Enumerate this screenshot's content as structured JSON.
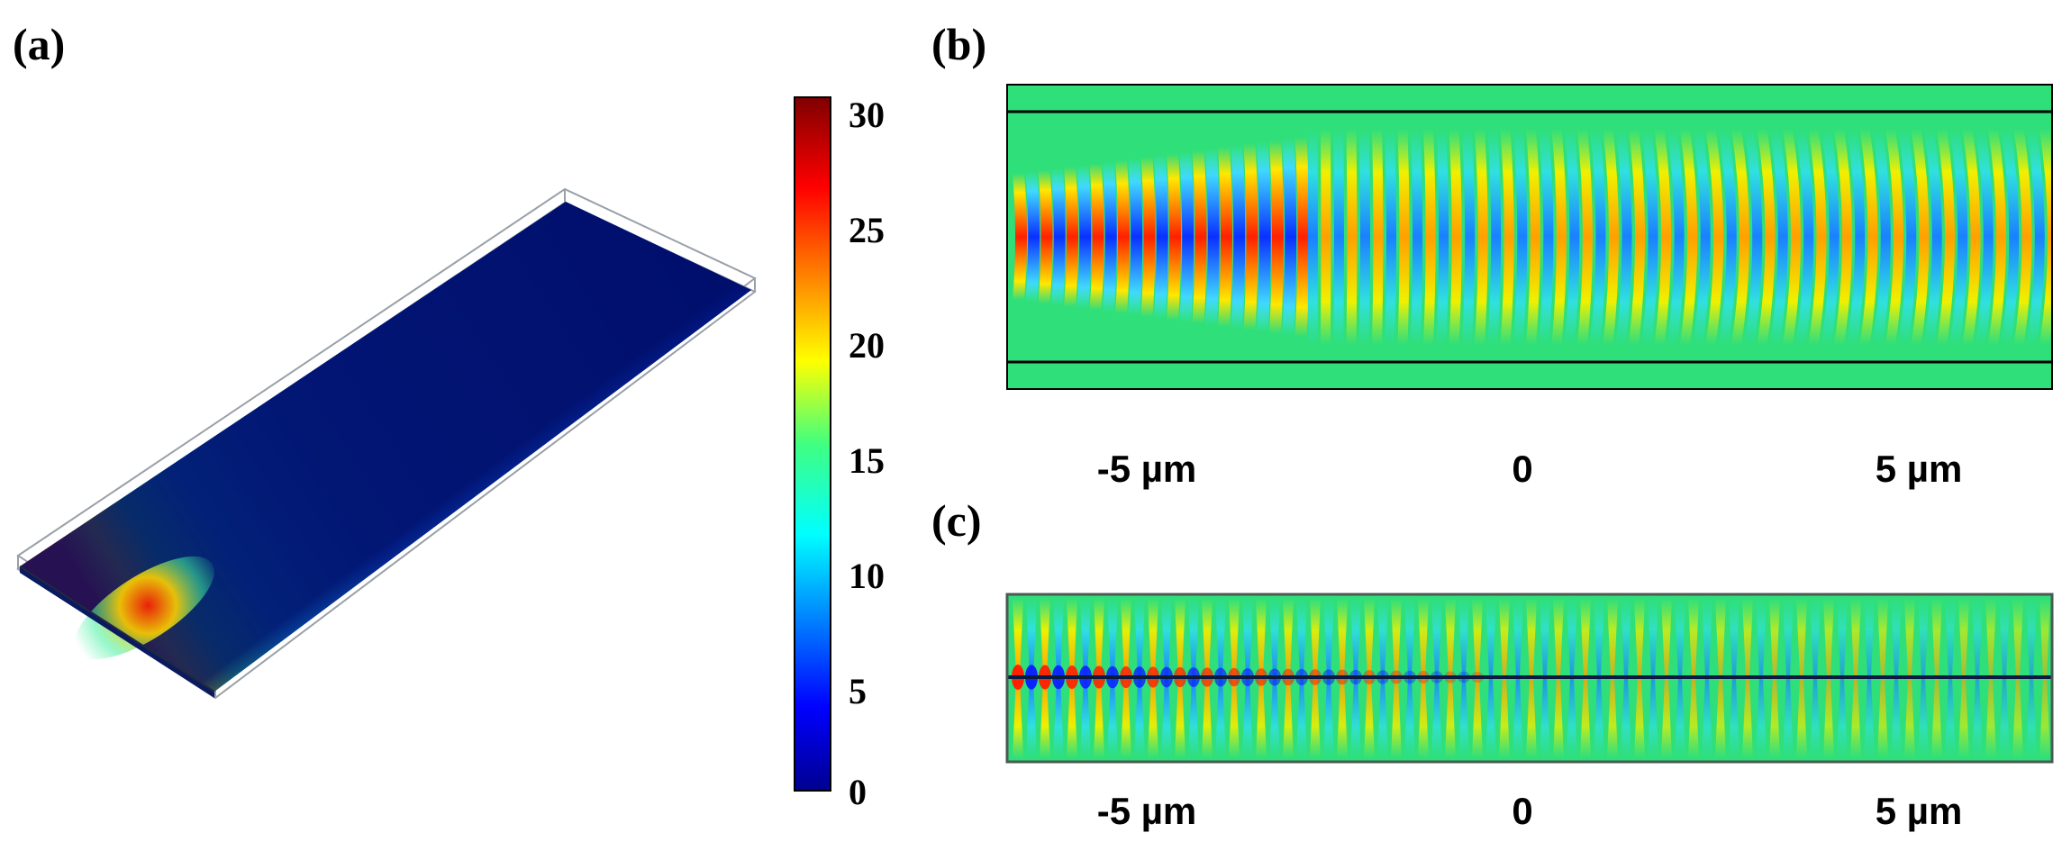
{
  "panels": {
    "a": {
      "label": "(a)"
    },
    "b": {
      "label": "(b)"
    },
    "c": {
      "label": "(c)"
    }
  },
  "colorbar": {
    "ticks": [
      "30",
      "25",
      "20",
      "15",
      "10",
      "5",
      "0"
    ],
    "range": [
      0,
      30
    ],
    "colormap": [
      "#00008f",
      "#0000ff",
      "#00ffff",
      "#ffff00",
      "#ff0000",
      "#800000"
    ]
  },
  "xaxis_b": {
    "ticks": [
      "-5 µm",
      "0",
      "5 µm"
    ]
  },
  "xaxis_c": {
    "ticks": [
      "-5 µm",
      "0",
      "5 µm"
    ]
  },
  "colors": {
    "background_field": "#2fdf7a",
    "positive": "#ff2a00",
    "negative": "#1030ff",
    "waveguide_dark": "#000a80"
  }
}
